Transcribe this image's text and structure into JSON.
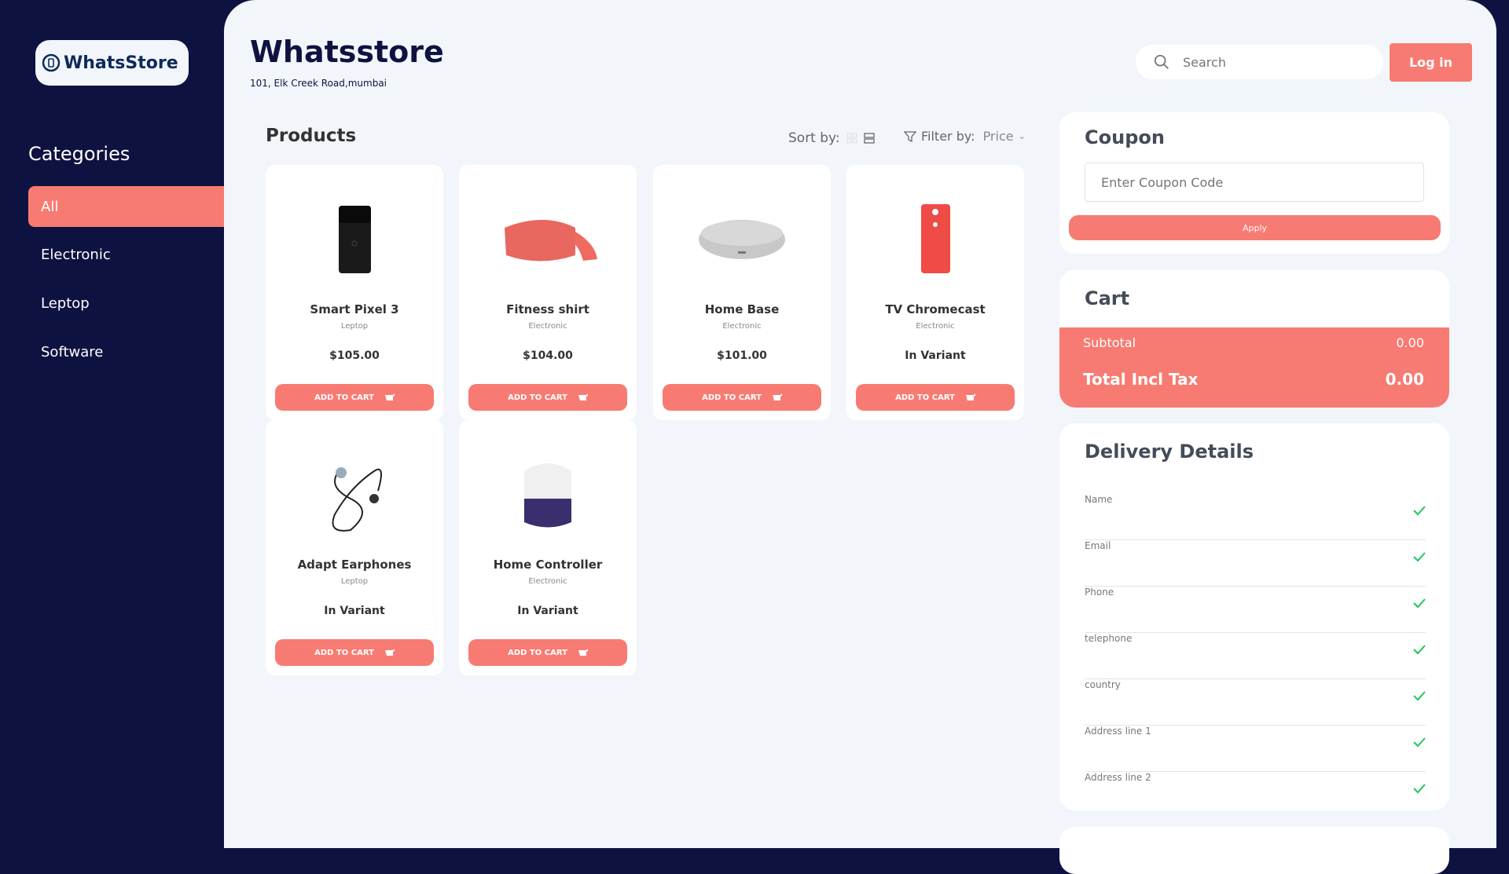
{
  "brand": {
    "logo_text": "WhatsStore",
    "store_name": "Whatsstore",
    "address": "101, Elk Creek Road,mumbai"
  },
  "sidebar": {
    "title": "Categories",
    "items": [
      {
        "label": "All",
        "active": true
      },
      {
        "label": "Electronic"
      },
      {
        "label": "Leptop"
      },
      {
        "label": "Software"
      }
    ]
  },
  "header": {
    "search_placeholder": "Search",
    "login_label": "Log in"
  },
  "products": {
    "title": "Products",
    "sort_label": "Sort by:",
    "filter_label": "Filter by:",
    "filter_value": "Price",
    "add_label": "ADD TO CART",
    "items": [
      {
        "name": "Smart Pixel 3",
        "category": "Leptop",
        "price": "$105.00",
        "icon": "black-phone"
      },
      {
        "name": "Fitness shirt",
        "category": "Electronic",
        "price": "$104.00",
        "icon": "vr-headset"
      },
      {
        "name": "Home Base",
        "category": "Electronic",
        "price": "$101.00",
        "icon": "smart-speaker"
      },
      {
        "name": "TV Chromecast",
        "category": "Electronic",
        "price": "In Variant",
        "icon": "red-phone"
      },
      {
        "name": "Adapt Earphones",
        "category": "Leptop",
        "price": "In Variant",
        "icon": "earphones"
      },
      {
        "name": "Home Controller",
        "category": "Electronic",
        "price": "In Variant",
        "icon": "home-speaker"
      }
    ]
  },
  "coupon": {
    "title": "Coupon",
    "placeholder": "Enter Coupon Code",
    "apply_label": "Apply"
  },
  "cart": {
    "title": "Cart",
    "subtotal_label": "Subtotal",
    "subtotal": "0.00",
    "total_label": "Total Incl Tax",
    "total": "0.00"
  },
  "delivery": {
    "title": "Delivery Details",
    "fields": [
      "Name",
      "Email",
      "Phone",
      "telephone",
      "country",
      "Address line 1",
      "Address line 2"
    ]
  },
  "colors": {
    "accent": "#f77b72",
    "navy": "#0e1240",
    "check": "#22c55e"
  }
}
